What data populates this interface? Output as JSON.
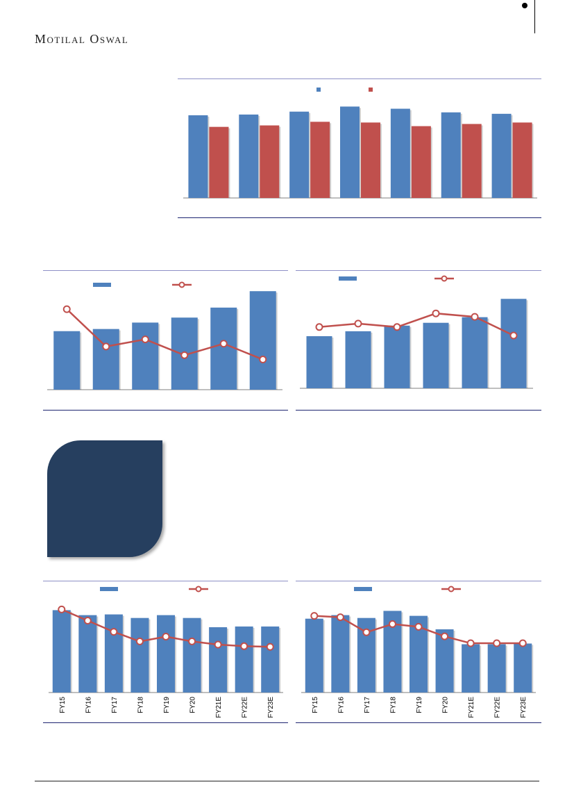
{
  "header": {
    "brand": "Motilal Oswal"
  },
  "colors": {
    "blue": "#4f81bd",
    "red": "#c0504d",
    "navy": "#263f5f",
    "rule_top": "#8d8fc6",
    "rule_bottom": "#1c2470"
  },
  "chart_data": [
    {
      "id": "chart-top",
      "type": "bar",
      "categories": [
        "",
        "",
        "",
        "",
        "",
        "",
        ""
      ],
      "series": [
        {
          "values": [
            114,
            115,
            119,
            126,
            123,
            118,
            116
          ]
        },
        {
          "values": [
            98,
            100,
            105,
            104,
            99,
            102,
            104
          ]
        }
      ],
      "ylim": [
        0,
        135
      ],
      "legend": "top-center"
    },
    {
      "id": "chart-mid-left",
      "type": "bar",
      "categories": [
        "",
        "",
        "",
        "",
        "",
        ""
      ],
      "series": [
        {
          "values": [
            82,
            85,
            94,
            101,
            115,
            138
          ],
          "kind": "bar"
        },
        {
          "values": [
            28,
            15,
            17.5,
            12,
            16,
            10.5
          ],
          "kind": "line"
        }
      ],
      "ylim": [
        0,
        145
      ],
      "y2lim": [
        0,
        36
      ],
      "legend": "top-center"
    },
    {
      "id": "chart-mid-right",
      "type": "bar",
      "categories": [
        "",
        "",
        "",
        "",
        "",
        ""
      ],
      "series": [
        {
          "values": [
            74,
            81,
            89,
            93,
            101,
            127
          ],
          "kind": "bar"
        },
        {
          "values": [
            18,
            19,
            18,
            22,
            21,
            15.5
          ],
          "kind": "line"
        }
      ],
      "ylim": [
        0,
        145
      ],
      "y2lim": [
        0,
        30
      ],
      "legend": "top-center"
    },
    {
      "id": "chart-bot-left",
      "type": "bar",
      "categories": [
        "FY15",
        "FY16",
        "FY17",
        "FY18",
        "FY19",
        "FY20",
        "FY21E",
        "FY22E",
        "FY23E"
      ],
      "series": [
        {
          "values": [
            116,
            109,
            110,
            105,
            109,
            105,
            92,
            93,
            93
          ],
          "kind": "bar"
        },
        {
          "values": [
            26,
            22.5,
            19,
            16,
            17.5,
            16,
            15,
            14.5,
            14.3
          ],
          "kind": "line"
        }
      ],
      "ylim": [
        0,
        135
      ],
      "y2lim": [
        0,
        30
      ],
      "legend": "top-center"
    },
    {
      "id": "chart-bot-right",
      "type": "bar",
      "categories": [
        "FY15",
        "FY16",
        "FY17",
        "FY18",
        "FY19",
        "FY20",
        "FY21E",
        "FY22E",
        "FY23E"
      ],
      "series": [
        {
          "values": [
            104,
            109,
            105,
            115,
            108,
            89,
            68,
            68,
            69
          ],
          "kind": "bar"
        },
        {
          "values": [
            28,
            27.5,
            22,
            25,
            24,
            20.5,
            18,
            18,
            18
          ],
          "kind": "line"
        }
      ],
      "ylim": [
        0,
        135
      ],
      "y2lim": [
        0,
        35
      ],
      "legend": "top-center"
    }
  ]
}
